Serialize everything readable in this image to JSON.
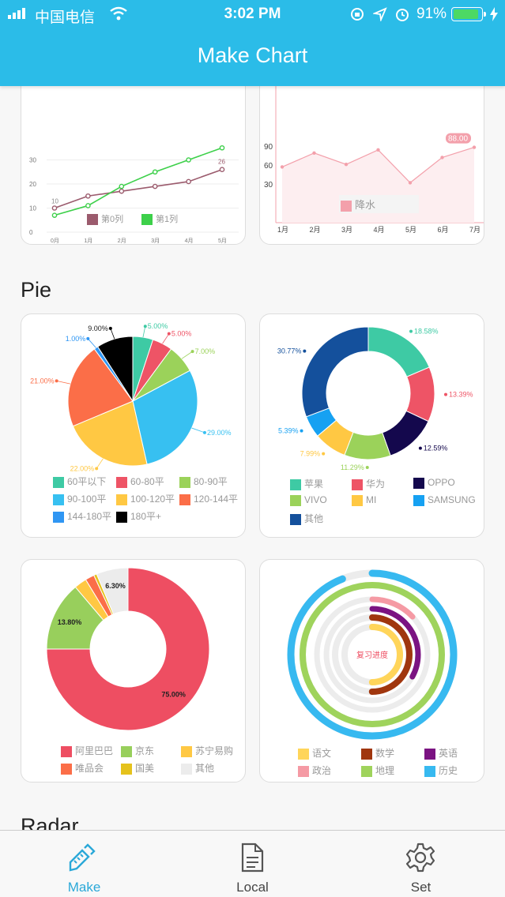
{
  "status_bar": {
    "carrier": "中国电信",
    "time": "3:02 PM",
    "battery": "91%"
  },
  "header": {
    "title": "Make Chart"
  },
  "sections": {
    "pie": "Pie",
    "radar": "Radar"
  },
  "colors": {
    "accent": "#2bbce8",
    "active_tab": "#2aa8d8"
  },
  "charts": {
    "line_chart": {
      "y_ticks": [
        "0",
        "10",
        "20",
        "30"
      ],
      "x_ticks": [
        "0月",
        "1月",
        "2月",
        "3月",
        "4月",
        "5月"
      ],
      "series": [
        {
          "name": "第0列",
          "color": "#9b5b6d",
          "values": [
            10,
            15,
            17,
            19,
            21,
            26
          ],
          "first_label": "10",
          "last_label": "26"
        },
        {
          "name": "第1列",
          "color": "#3dd04a",
          "values": [
            7,
            11,
            19,
            25,
            30,
            35
          ]
        }
      ]
    },
    "area_chart": {
      "y_ticks": [
        "30",
        "60",
        "90"
      ],
      "x_ticks": [
        "1月",
        "2月",
        "3月",
        "4月",
        "5月",
        "6月",
        "7月"
      ],
      "series_name": "降水",
      "values": [
        57,
        79,
        61,
        84,
        32,
        72,
        88
      ],
      "highlight_label": "88.00",
      "color": "#f3a0ab"
    },
    "pie_area": {
      "slices": [
        {
          "name": "60平以下",
          "value": 5,
          "label": "5.00%",
          "color": "#3ecaa4"
        },
        {
          "name": "60-80平",
          "value": 5,
          "label": "5.00%",
          "color": "#ee5466"
        },
        {
          "name": "80-90平",
          "value": 7,
          "label": "7.00%",
          "color": "#9bd25a"
        },
        {
          "name": "90-100平",
          "value": 29,
          "label": "29.00%",
          "color": "#37c0f1"
        },
        {
          "name": "100-120平",
          "value": 22,
          "label": "22.00%",
          "color": "#ffc843"
        },
        {
          "name": "120-144平",
          "value": 21,
          "label": "21.00%",
          "color": "#fb6e48"
        },
        {
          "name": "144-180平",
          "value": 1,
          "label": "1.00%",
          "color": "#2f96f3"
        },
        {
          "name": "180平+",
          "value": 9,
          "label": "9.00%",
          "color": "#000000"
        }
      ]
    },
    "donut_phone": {
      "slices": [
        {
          "name": "苹果",
          "value": 18.58,
          "label": "18.58%",
          "color": "#3ecaa4"
        },
        {
          "name": "华为",
          "value": 13.39,
          "label": "13.39%",
          "color": "#ee5466"
        },
        {
          "name": "OPPO",
          "value": 12.59,
          "label": "12.59%",
          "color": "#14084d"
        },
        {
          "name": "VIVO",
          "value": 11.29,
          "label": "11.29%",
          "color": "#9bd25a"
        },
        {
          "name": "MI",
          "value": 7.99,
          "label": "7.99%",
          "color": "#ffc843"
        },
        {
          "name": "SAMSUNG",
          "value": 5.39,
          "label": "5.39%",
          "color": "#16a1f2"
        },
        {
          "name": "其他",
          "value": 30.77,
          "label": "30.77%",
          "color": "#14509c"
        }
      ]
    },
    "donut_shop": {
      "slices": [
        {
          "name": "阿里巴巴",
          "value": 75.0,
          "label": "75.00%",
          "color": "#ee4e62"
        },
        {
          "name": "京东",
          "value": 13.8,
          "label": "13.80%",
          "color": "#98cf5c"
        },
        {
          "name": "苏宁易购",
          "value": 2.5,
          "label": "",
          "color": "#ffc843"
        },
        {
          "name": "唯品会",
          "value": 1.8,
          "label": "",
          "color": "#fb6e48"
        },
        {
          "name": "国美",
          "value": 0.6,
          "label": "",
          "color": "#e5c21c"
        },
        {
          "name": "其他",
          "value": 6.3,
          "label": "6.30%",
          "color": "#ececec"
        }
      ]
    },
    "ring_progress": {
      "center_label": "复习进度",
      "rings": [
        {
          "name": "语文",
          "value": 0.5,
          "color": "#ffd55a"
        },
        {
          "name": "数学",
          "value": 0.5,
          "color": "#a0360e"
        },
        {
          "name": "英语",
          "value": 0.33,
          "color": "#7b1382"
        },
        {
          "name": "政治",
          "value": 0.13,
          "color": "#f59aa4"
        },
        {
          "name": "地理",
          "value": 1.0,
          "color": "#9fd35c"
        },
        {
          "name": "历史",
          "value": 0.94,
          "color": "#37b9f0"
        }
      ]
    }
  },
  "tabbar": {
    "items": [
      {
        "label": "Make"
      },
      {
        "label": "Local"
      },
      {
        "label": "Set"
      }
    ]
  }
}
